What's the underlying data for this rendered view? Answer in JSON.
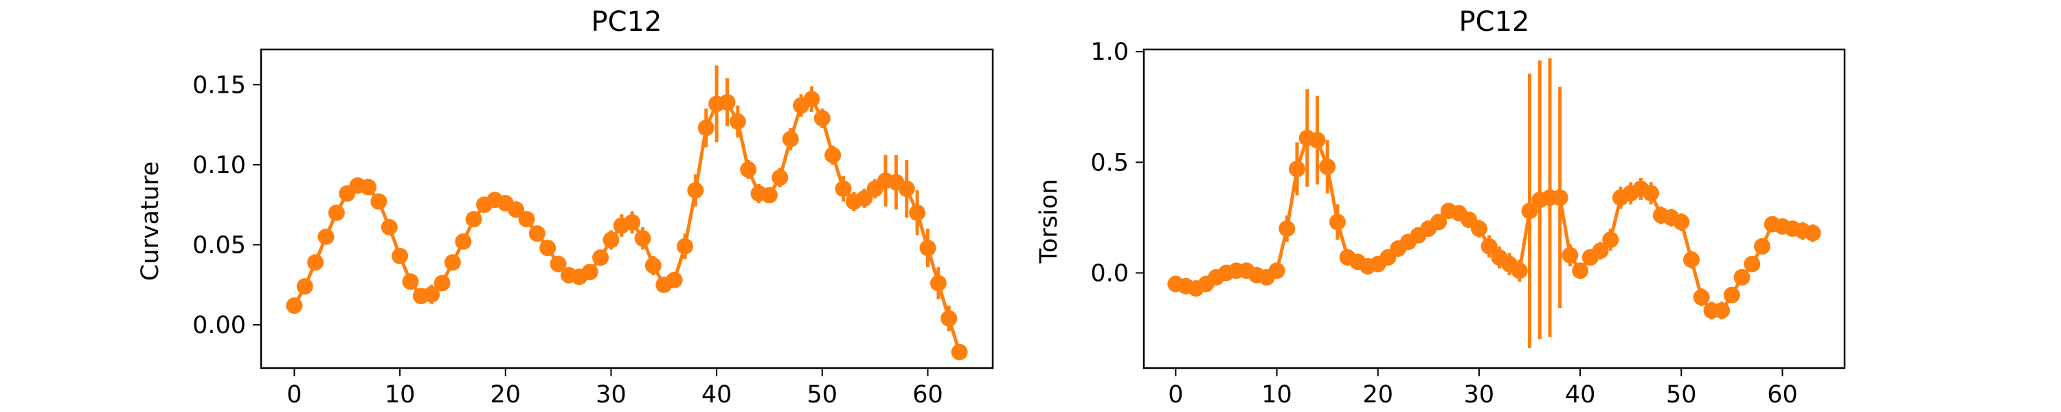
{
  "chart_data": [
    {
      "type": "line",
      "title": "PC12",
      "xlabel": "",
      "ylabel": "Curvature",
      "xlim": [
        -3.15,
        66.15
      ],
      "ylim": [
        -0.027,
        0.172
      ],
      "xticks": [
        0,
        10,
        20,
        30,
        40,
        50,
        60
      ],
      "yticks": [
        0.0,
        0.05,
        0.1,
        0.15
      ],
      "ytick_labels": [
        "0.00",
        "0.05",
        "0.10",
        "0.15"
      ],
      "grid": false,
      "color": "#ff7f0e",
      "marker": "circle",
      "error_bars": true,
      "x": [
        0,
        1,
        2,
        3,
        4,
        5,
        6,
        7,
        8,
        9,
        10,
        11,
        12,
        13,
        14,
        15,
        16,
        17,
        18,
        19,
        20,
        21,
        22,
        23,
        24,
        25,
        26,
        27,
        28,
        29,
        30,
        31,
        32,
        33,
        34,
        35,
        36,
        37,
        38,
        39,
        40,
        41,
        42,
        43,
        44,
        45,
        46,
        47,
        48,
        49,
        50,
        51,
        52,
        53,
        54,
        55,
        56,
        57,
        58,
        59,
        60,
        61,
        62,
        63
      ],
      "y": [
        0.012,
        0.024,
        0.039,
        0.055,
        0.07,
        0.082,
        0.087,
        0.086,
        0.077,
        0.061,
        0.043,
        0.027,
        0.018,
        0.019,
        0.026,
        0.039,
        0.052,
        0.066,
        0.075,
        0.078,
        0.076,
        0.072,
        0.066,
        0.057,
        0.048,
        0.038,
        0.031,
        0.03,
        0.033,
        0.042,
        0.053,
        0.062,
        0.064,
        0.054,
        0.037,
        0.025,
        0.028,
        0.049,
        0.084,
        0.123,
        0.138,
        0.139,
        0.127,
        0.097,
        0.082,
        0.081,
        0.092,
        0.116,
        0.137,
        0.141,
        0.129,
        0.106,
        0.085,
        0.077,
        0.079,
        0.085,
        0.09,
        0.089,
        0.085,
        0.07,
        0.048,
        0.026,
        0.004,
        -0.017
      ],
      "yerr": [
        0.002,
        0.002,
        0.002,
        0.003,
        0.003,
        0.003,
        0.003,
        0.003,
        0.003,
        0.003,
        0.003,
        0.003,
        0.004,
        0.006,
        0.005,
        0.004,
        0.004,
        0.004,
        0.003,
        0.003,
        0.003,
        0.004,
        0.005,
        0.005,
        0.005,
        0.005,
        0.004,
        0.005,
        0.005,
        0.005,
        0.006,
        0.007,
        0.007,
        0.007,
        0.006,
        0.005,
        0.005,
        0.008,
        0.01,
        0.012,
        0.024,
        0.015,
        0.01,
        0.006,
        0.006,
        0.005,
        0.006,
        0.007,
        0.007,
        0.008,
        0.006,
        0.006,
        0.008,
        0.006,
        0.006,
        0.006,
        0.016,
        0.017,
        0.018,
        0.014,
        0.012,
        0.01,
        0.008,
        0.004
      ]
    },
    {
      "type": "line",
      "title": "PC12",
      "xlabel": "",
      "ylabel": "Torsion",
      "xlim": [
        -3.15,
        66.15
      ],
      "ylim": [
        -0.43,
        1.01
      ],
      "xticks": [
        0,
        10,
        20,
        30,
        40,
        50,
        60
      ],
      "yticks": [
        0.0,
        0.5,
        1.0
      ],
      "ytick_labels": [
        "0.0",
        "0.5",
        "1.0"
      ],
      "grid": false,
      "color": "#ff7f0e",
      "marker": "circle",
      "error_bars": true,
      "x": [
        0,
        1,
        2,
        3,
        4,
        5,
        6,
        7,
        8,
        9,
        10,
        11,
        12,
        13,
        14,
        15,
        16,
        17,
        18,
        19,
        20,
        21,
        22,
        23,
        24,
        25,
        26,
        27,
        28,
        29,
        30,
        31,
        32,
        33,
        34,
        35,
        36,
        37,
        38,
        39,
        40,
        41,
        42,
        43,
        44,
        45,
        46,
        47,
        48,
        49,
        50,
        51,
        52,
        53,
        54,
        55,
        56,
        57,
        58,
        59,
        60,
        61,
        62,
        63
      ],
      "y": [
        -0.05,
        -0.06,
        -0.07,
        -0.05,
        -0.02,
        0.0,
        0.01,
        0.01,
        -0.01,
        -0.02,
        0.01,
        0.2,
        0.47,
        0.61,
        0.6,
        0.48,
        0.23,
        0.07,
        0.05,
        0.03,
        0.04,
        0.07,
        0.11,
        0.14,
        0.17,
        0.2,
        0.23,
        0.28,
        0.27,
        0.24,
        0.2,
        0.12,
        0.07,
        0.04,
        0.01,
        0.28,
        0.33,
        0.34,
        0.34,
        0.08,
        0.01,
        0.07,
        0.1,
        0.15,
        0.34,
        0.36,
        0.38,
        0.36,
        0.26,
        0.25,
        0.23,
        0.06,
        -0.11,
        -0.17,
        -0.17,
        -0.1,
        -0.02,
        0.04,
        0.12,
        0.22,
        0.21,
        0.2,
        0.19,
        0.18
      ],
      "yerr": [
        0.02,
        0.02,
        0.03,
        0.03,
        0.02,
        0.02,
        0.02,
        0.02,
        0.02,
        0.02,
        0.03,
        0.06,
        0.12,
        0.22,
        0.2,
        0.12,
        0.08,
        0.03,
        0.02,
        0.02,
        0.02,
        0.02,
        0.02,
        0.02,
        0.02,
        0.02,
        0.03,
        0.03,
        0.03,
        0.03,
        0.04,
        0.05,
        0.05,
        0.05,
        0.05,
        0.62,
        0.63,
        0.63,
        0.5,
        0.05,
        0.03,
        0.03,
        0.04,
        0.05,
        0.05,
        0.05,
        0.05,
        0.05,
        0.04,
        0.04,
        0.04,
        0.04,
        0.04,
        0.04,
        0.04,
        0.03,
        0.03,
        0.03,
        0.03,
        0.03,
        0.03,
        0.03,
        0.04,
        0.04
      ]
    }
  ]
}
